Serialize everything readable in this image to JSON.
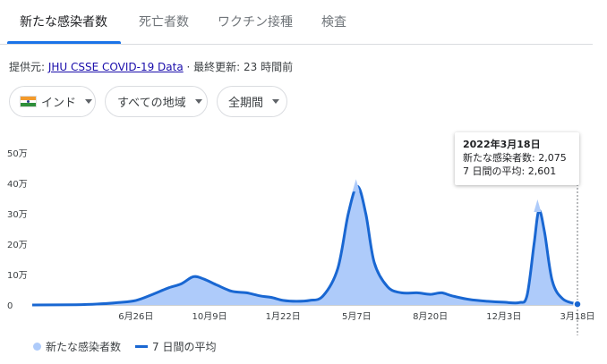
{
  "tabs": [
    {
      "label": "新たな感染者数",
      "active": true
    },
    {
      "label": "死亡者数",
      "active": false
    },
    {
      "label": "ワクチン接種",
      "active": false
    },
    {
      "label": "検査",
      "active": false
    }
  ],
  "source": {
    "prefix": "提供元: ",
    "link": "JHU CSSE COVID-19 Data",
    "separator": " · ",
    "updated": "最終更新: 23 時間前"
  },
  "filters": {
    "country": "インド",
    "region": "すべての地域",
    "period": "全期間",
    "flag_icon": "india-flag-icon"
  },
  "tooltip": {
    "date": "2022年3月18日",
    "cases": "新たな感染者数: 2,075",
    "average": "7 日間の平均: 2,601"
  },
  "legend": {
    "cases": "新たな感染者数",
    "average": "7 日間の平均"
  },
  "colors": {
    "accent": "#1a73e8",
    "area": "#aecbfa",
    "line": "#1967d2"
  },
  "chart_data": {
    "type": "area",
    "y_unit": "万",
    "ylim": [
      0,
      50
    ],
    "yticks": [
      {
        "value": 0,
        "label": "0"
      },
      {
        "value": 10,
        "label": "10万"
      },
      {
        "value": 20,
        "label": "20万"
      },
      {
        "value": 30,
        "label": "30万"
      },
      {
        "value": 40,
        "label": "40万"
      },
      {
        "value": 50,
        "label": "50万"
      }
    ],
    "xticks": [
      {
        "date": "2020-06-26",
        "label": "6月26日"
      },
      {
        "date": "2020-10-09",
        "label": "10月9日"
      },
      {
        "date": "2021-01-22",
        "label": "1月22日"
      },
      {
        "date": "2021-05-07",
        "label": "5月7日"
      },
      {
        "date": "2021-08-20",
        "label": "8月20日"
      },
      {
        "date": "2021-12-03",
        "label": "12月3日"
      },
      {
        "date": "2022-03-18",
        "label": "3月18日"
      }
    ],
    "x_range": [
      "2020-01-30",
      "2022-03-18"
    ],
    "series": [
      {
        "name": "新たな感染者数",
        "style": "area"
      },
      {
        "name": "7 日間の平均",
        "style": "line"
      }
    ],
    "average": [
      [
        "2020-01-30",
        0
      ],
      [
        "2020-04-01",
        0.1
      ],
      [
        "2020-05-01",
        0.3
      ],
      [
        "2020-06-01",
        0.8
      ],
      [
        "2020-06-26",
        1.5
      ],
      [
        "2020-07-20",
        3.5
      ],
      [
        "2020-08-10",
        5.5
      ],
      [
        "2020-08-30",
        7.0
      ],
      [
        "2020-09-16",
        9.3
      ],
      [
        "2020-10-01",
        8.5
      ],
      [
        "2020-10-20",
        6.5
      ],
      [
        "2020-11-10",
        4.5
      ],
      [
        "2020-12-01",
        4.0
      ],
      [
        "2020-12-20",
        3.0
      ],
      [
        "2021-01-05",
        2.5
      ],
      [
        "2021-01-22",
        1.5
      ],
      [
        "2021-02-10",
        1.2
      ],
      [
        "2021-03-01",
        1.5
      ],
      [
        "2021-03-20",
        3.0
      ],
      [
        "2021-04-10",
        12.0
      ],
      [
        "2021-04-25",
        30.0
      ],
      [
        "2021-05-08",
        39.0
      ],
      [
        "2021-05-20",
        30.0
      ],
      [
        "2021-06-01",
        14.0
      ],
      [
        "2021-06-20",
        6.0
      ],
      [
        "2021-07-10",
        4.0
      ],
      [
        "2021-08-01",
        4.0
      ],
      [
        "2021-08-20",
        3.5
      ],
      [
        "2021-09-05",
        4.0
      ],
      [
        "2021-09-20",
        3.0
      ],
      [
        "2021-10-15",
        1.8
      ],
      [
        "2021-11-10",
        1.2
      ],
      [
        "2021-12-03",
        0.9
      ],
      [
        "2021-12-25",
        0.8
      ],
      [
        "2022-01-05",
        3.0
      ],
      [
        "2022-01-15",
        20.0
      ],
      [
        "2022-01-22",
        31.0
      ],
      [
        "2022-01-30",
        24.0
      ],
      [
        "2022-02-10",
        8.0
      ],
      [
        "2022-02-25",
        2.0
      ],
      [
        "2022-03-18",
        0.26
      ]
    ],
    "cases_peaks": [
      [
        "2021-05-06",
        41.4
      ],
      [
        "2022-01-20",
        34.7
      ]
    ],
    "selected": {
      "date": "2022-03-18",
      "cases": 2075,
      "average": 2601
    }
  }
}
